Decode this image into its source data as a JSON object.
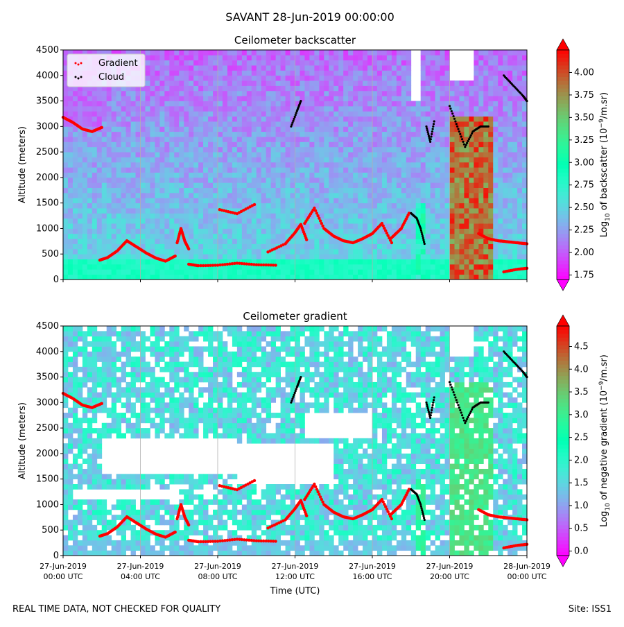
{
  "figure": {
    "suptitle": "SAVANT 28-Jun-2019 00:00:00",
    "footer_left": "REAL TIME DATA, NOT CHECKED FOR QUALITY",
    "footer_right": "Site: ISS1",
    "colormap": "rainbow",
    "background": "#ffffff",
    "gridline_color": "#b0b0b0"
  },
  "chart_data": [
    {
      "type": "heatmap",
      "title": "Ceilometer backscatter",
      "ylabel": "Altitude (meters)",
      "xlabel": "",
      "x_range": [
        "27-Jun-2019 00:00 UTC",
        "28-Jun-2019 00:00 UTC"
      ],
      "ylim": [
        0,
        4500
      ],
      "yticks": [
        0,
        500,
        1000,
        1500,
        2000,
        2500,
        3000,
        3500,
        4000,
        4500
      ],
      "xticks_hours": [
        0,
        4,
        8,
        12,
        16,
        20,
        24
      ],
      "xtick_labels": [
        "",
        "",
        "",
        "",
        "",
        "",
        ""
      ],
      "vertical_gridlines": true,
      "colorbar": {
        "label": "Log10 of backscatter (10^-9/m.sr)",
        "label_parts": [
          "Log",
          "10",
          " of backscatter (10",
          "−9",
          "/m.sr)"
        ],
        "range": [
          1.7,
          4.25
        ],
        "ticks": [
          1.75,
          2.0,
          2.25,
          2.5,
          2.75,
          3.0,
          3.25,
          3.5,
          3.75,
          4.0
        ],
        "tick_labels": [
          "1.75",
          "2.00",
          "2.25",
          "2.50",
          "2.75",
          "3.00",
          "3.25",
          "3.50",
          "3.75",
          "4.00"
        ],
        "extend": "both"
      },
      "legend": {
        "placement": "upper-left",
        "entries": [
          {
            "label": "Gradient",
            "color": "#ff0000"
          },
          {
            "label": "Cloud",
            "color": "#000000"
          }
        ]
      },
      "background_description": "low_level_high",
      "blank_regions": [
        {
          "x": [
            20.0,
            21.3
          ],
          "y": [
            3900,
            4500
          ]
        },
        {
          "x": [
            18.0,
            18.5
          ],
          "y": [
            3500,
            4500
          ]
        }
      ],
      "high_backscatter_columns": [
        {
          "x": [
            20.0,
            22.2
          ],
          "y": [
            0,
            3200
          ],
          "value": 4.2
        },
        {
          "x": [
            18.3,
            18.7
          ],
          "y": [
            0,
            1500
          ],
          "value": 3.2
        }
      ],
      "series": [
        {
          "name": "Gradient",
          "color": "#ff0000",
          "segments": [
            {
              "x": [
                0.0,
                0.5,
                1.0,
                1.5,
                2.0
              ],
              "y": [
                3180,
                3080,
                2950,
                2900,
                2980
              ]
            },
            {
              "x": [
                1.9,
                2.3,
                2.8,
                3.3,
                3.8,
                4.3,
                4.8,
                5.3,
                5.8
              ],
              "y": [
                380,
                430,
                560,
                760,
                640,
                520,
                420,
                360,
                460
              ]
            },
            {
              "x": [
                5.9,
                6.1,
                6.3,
                6.5
              ],
              "y": [
                720,
                1000,
                750,
                600
              ]
            },
            {
              "x": [
                6.5,
                7.0,
                8.0,
                9.0,
                10.0,
                11.0
              ],
              "y": [
                300,
                270,
                280,
                320,
                290,
                280
              ]
            },
            {
              "x": [
                8.1,
                9.0,
                9.9
              ],
              "y": [
                1370,
                1290,
                1470
              ]
            },
            {
              "x": [
                10.6,
                11.5,
                12.0,
                12.3,
                12.6
              ],
              "y": [
                540,
                700,
                920,
                1080,
                780
              ]
            },
            {
              "x": [
                12.5,
                13.0,
                13.5,
                14.0,
                14.5,
                15.0,
                15.5,
                16.0,
                16.5,
                17.0
              ],
              "y": [
                1100,
                1400,
                1000,
                850,
                760,
                720,
                800,
                900,
                1100,
                720
              ]
            },
            {
              "x": [
                17.0,
                17.5,
                17.9
              ],
              "y": [
                820,
                1000,
                1300
              ]
            },
            {
              "x": [
                21.5,
                22.0,
                22.5,
                23.0,
                23.5,
                24.0
              ],
              "y": [
                900,
                800,
                760,
                740,
                720,
                700
              ]
            },
            {
              "x": [
                22.8,
                23.5,
                24.0
              ],
              "y": [
                150,
                200,
                220
              ]
            }
          ]
        },
        {
          "name": "Cloud",
          "color": "#000000",
          "segments": [
            {
              "x": [
                11.8,
                12.1,
                12.3
              ],
              "y": [
                3000,
                3300,
                3500
              ]
            },
            {
              "x": [
                18.0,
                18.3,
                18.5,
                18.7
              ],
              "y": [
                1300,
                1200,
                1000,
                700
              ]
            },
            {
              "x": [
                18.8,
                19.0,
                19.2
              ],
              "y": [
                3000,
                2700,
                3100
              ]
            },
            {
              "x": [
                20.0,
                20.4,
                20.8,
                21.2,
                21.6,
                22.0
              ],
              "y": [
                3400,
                3000,
                2600,
                2900,
                3000,
                3000
              ]
            },
            {
              "x": [
                22.8,
                23.3,
                23.8,
                24.0
              ],
              "y": [
                4000,
                3800,
                3600,
                3500
              ]
            }
          ]
        }
      ]
    },
    {
      "type": "heatmap",
      "title": "Ceilometer gradient",
      "ylabel": "Altitude (meters)",
      "xlabel": "Time (UTC)",
      "x_range": [
        "27-Jun-2019 00:00 UTC",
        "28-Jun-2019 00:00 UTC"
      ],
      "ylim": [
        0,
        4500
      ],
      "yticks": [
        0,
        500,
        1000,
        1500,
        2000,
        2500,
        3000,
        3500,
        4000,
        4500
      ],
      "xticks_hours": [
        0,
        4,
        8,
        12,
        16,
        20,
        24
      ],
      "xtick_labels": [
        [
          "27-Jun-2019",
          "00:00 UTC"
        ],
        [
          "27-Jun-2019",
          "04:00 UTC"
        ],
        [
          "27-Jun-2019",
          "08:00 UTC"
        ],
        [
          "27-Jun-2019",
          "12:00 UTC"
        ],
        [
          "27-Jun-2019",
          "16:00 UTC"
        ],
        [
          "27-Jun-2019",
          "20:00 UTC"
        ],
        [
          "28-Jun-2019",
          "00:00 UTC"
        ]
      ],
      "vertical_gridlines": true,
      "colorbar": {
        "label": "Log10 of negative gradient (10^-9/m.sr)",
        "label_parts": [
          "Log",
          "10",
          " of negative gradient (10",
          "−9",
          "/m.sr)"
        ],
        "range": [
          -0.1,
          4.95
        ],
        "ticks": [
          0.0,
          0.5,
          1.0,
          1.5,
          2.0,
          2.5,
          3.0,
          3.5,
          4.0,
          4.5
        ],
        "tick_labels": [
          "0.0",
          "0.5",
          "1.0",
          "1.5",
          "2.0",
          "2.5",
          "3.0",
          "3.5",
          "4.0",
          "4.5"
        ],
        "extend": "both"
      },
      "background_description": "patchy_with_gaps",
      "blank_regions": [
        {
          "x": [
            0.5,
            6.0
          ],
          "y": [
            1100,
            1350
          ]
        },
        {
          "x": [
            2.0,
            9.0
          ],
          "y": [
            1600,
            2300
          ]
        },
        {
          "x": [
            9.0,
            14.0
          ],
          "y": [
            1400,
            2200
          ]
        },
        {
          "x": [
            12.5,
            16.0
          ],
          "y": [
            2300,
            2800
          ]
        },
        {
          "x": [
            20.0,
            21.3
          ],
          "y": [
            3900,
            4500
          ]
        }
      ],
      "high_gradient_columns": [
        {
          "x": [
            20.0,
            22.2
          ],
          "y": [
            0,
            3400
          ],
          "value": 3.5
        },
        {
          "x": [
            18.3,
            18.7
          ],
          "y": [
            0,
            1500
          ],
          "value": 3.2
        }
      ],
      "series": [
        {
          "name": "Gradient",
          "color": "#ff0000",
          "segments": [
            {
              "x": [
                0.0,
                0.5,
                1.0,
                1.5,
                2.0
              ],
              "y": [
                3180,
                3080,
                2950,
                2900,
                2980
              ]
            },
            {
              "x": [
                1.9,
                2.3,
                2.8,
                3.3,
                3.8,
                4.3,
                4.8,
                5.3,
                5.8
              ],
              "y": [
                380,
                430,
                560,
                760,
                640,
                520,
                420,
                360,
                460
              ]
            },
            {
              "x": [
                5.9,
                6.1,
                6.3,
                6.5
              ],
              "y": [
                720,
                1000,
                750,
                600
              ]
            },
            {
              "x": [
                6.5,
                7.0,
                8.0,
                9.0,
                10.0,
                11.0
              ],
              "y": [
                300,
                270,
                280,
                320,
                290,
                280
              ]
            },
            {
              "x": [
                8.1,
                9.0,
                9.9
              ],
              "y": [
                1370,
                1290,
                1470
              ]
            },
            {
              "x": [
                10.6,
                11.5,
                12.0,
                12.3,
                12.6
              ],
              "y": [
                540,
                700,
                920,
                1080,
                780
              ]
            },
            {
              "x": [
                12.5,
                13.0,
                13.5,
                14.0,
                14.5,
                15.0,
                15.5,
                16.0,
                16.5,
                17.0
              ],
              "y": [
                1100,
                1400,
                1000,
                850,
                760,
                720,
                800,
                900,
                1100,
                720
              ]
            },
            {
              "x": [
                17.0,
                17.5,
                17.9
              ],
              "y": [
                820,
                1000,
                1300
              ]
            },
            {
              "x": [
                21.5,
                22.0,
                22.5,
                23.0,
                23.5,
                24.0
              ],
              "y": [
                900,
                800,
                760,
                740,
                720,
                700
              ]
            },
            {
              "x": [
                22.8,
                23.5,
                24.0
              ],
              "y": [
                150,
                200,
                220
              ]
            }
          ]
        },
        {
          "name": "Cloud",
          "color": "#000000",
          "segments": [
            {
              "x": [
                11.8,
                12.1,
                12.3
              ],
              "y": [
                3000,
                3300,
                3500
              ]
            },
            {
              "x": [
                18.0,
                18.3,
                18.5,
                18.7
              ],
              "y": [
                1300,
                1200,
                1000,
                700
              ]
            },
            {
              "x": [
                18.8,
                19.0,
                19.2
              ],
              "y": [
                3000,
                2700,
                3100
              ]
            },
            {
              "x": [
                20.0,
                20.4,
                20.8,
                21.2,
                21.6,
                22.0
              ],
              "y": [
                3400,
                3000,
                2600,
                2900,
                3000,
                3000
              ]
            },
            {
              "x": [
                22.8,
                23.3,
                23.8,
                24.0
              ],
              "y": [
                4000,
                3800,
                3600,
                3500
              ]
            }
          ]
        }
      ]
    }
  ]
}
